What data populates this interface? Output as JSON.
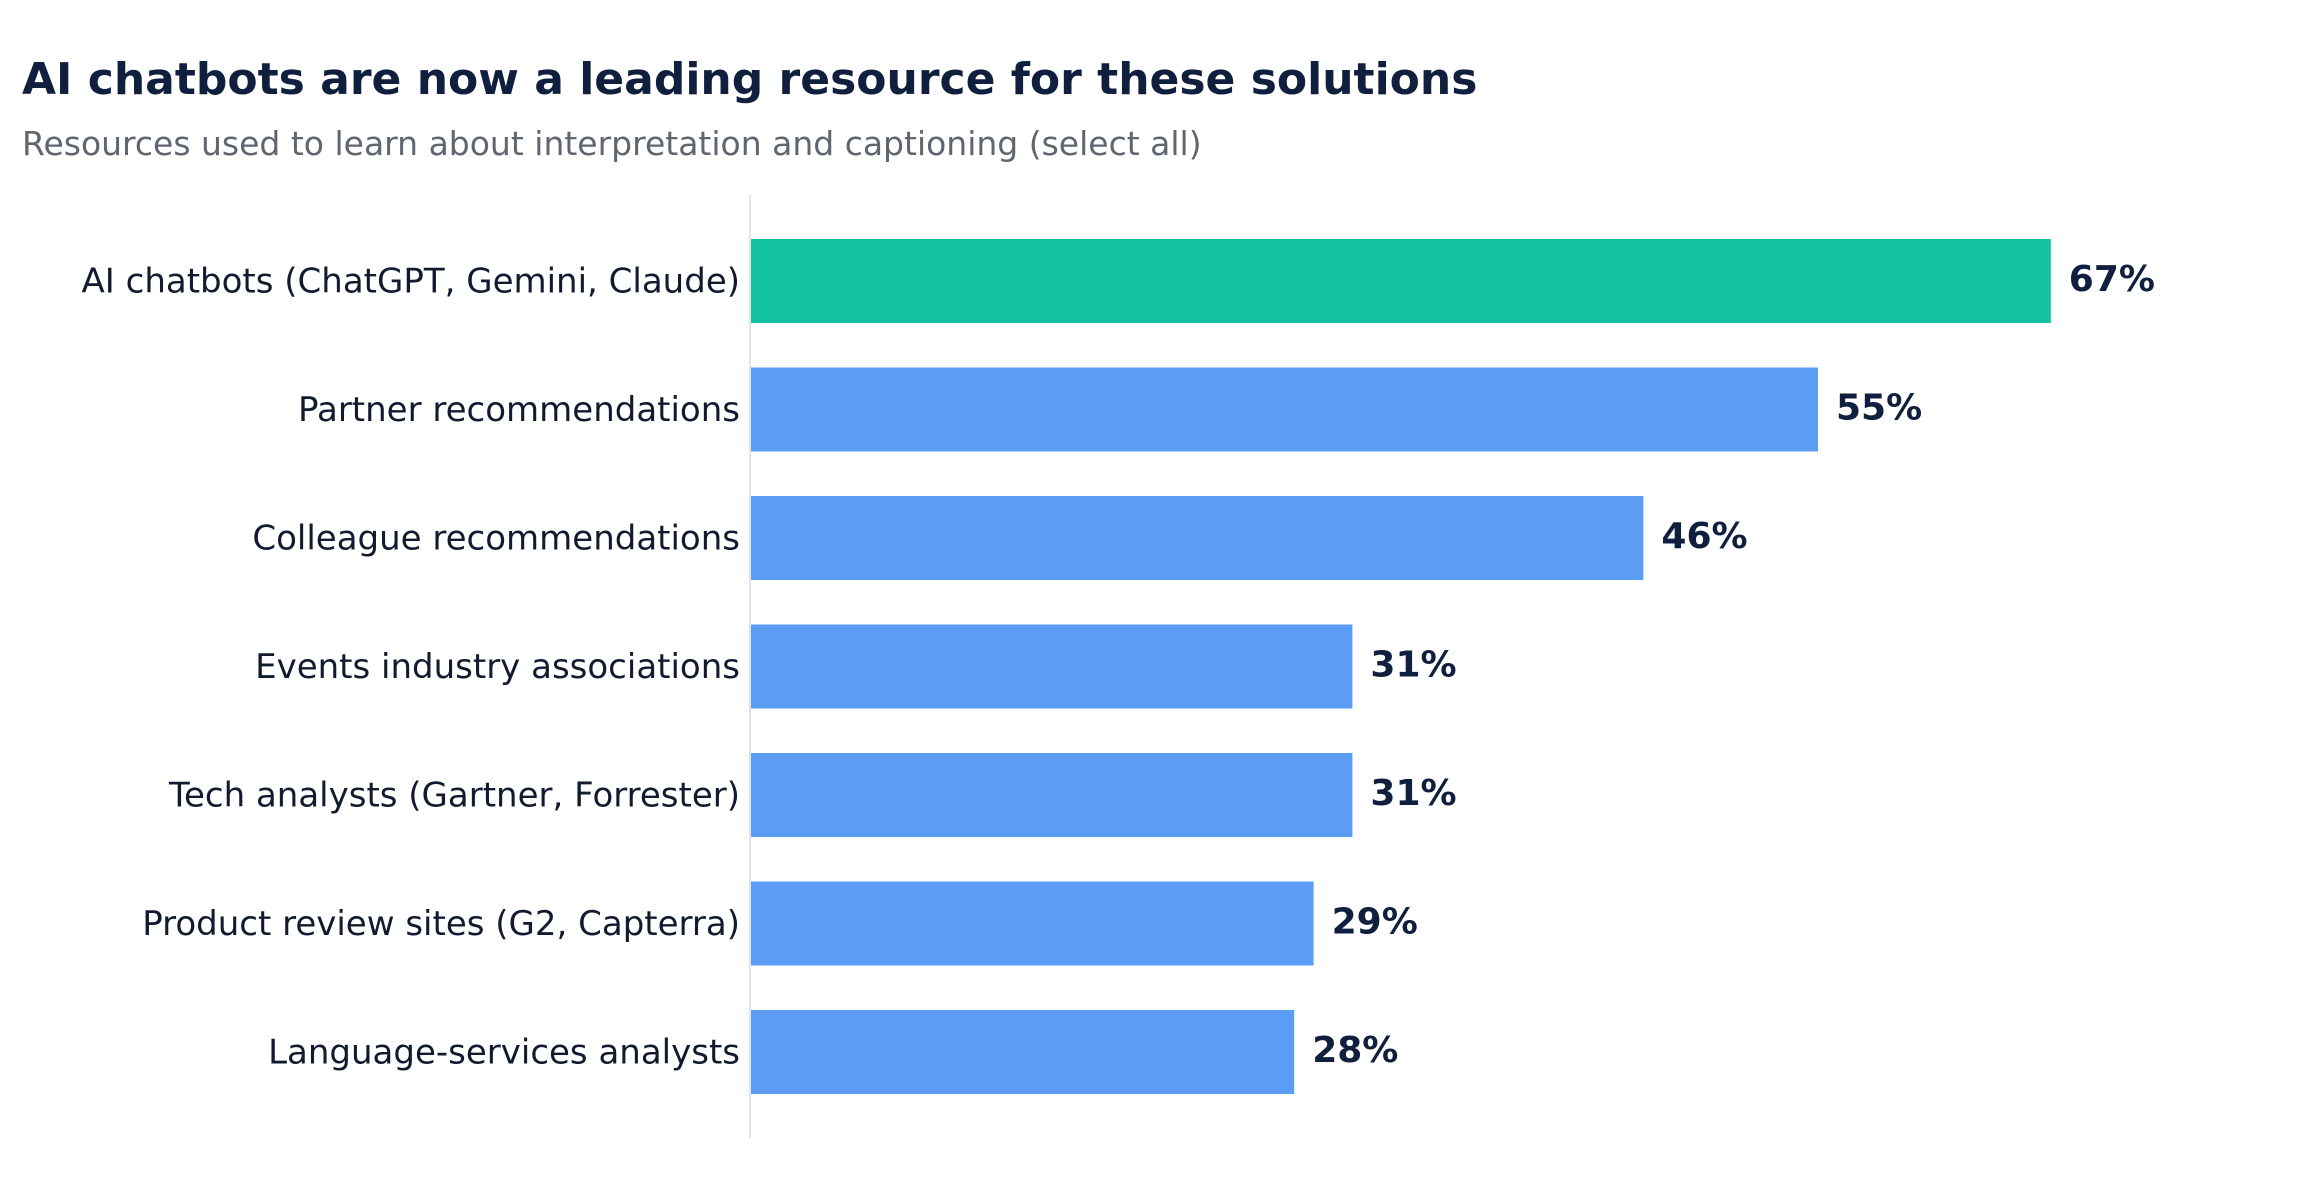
{
  "colors": {
    "title": "#0f1f3d",
    "subtitle": "#5f6670",
    "label": "#111a2e",
    "highlight": "#14c2a3",
    "bar": "#5b9cf5",
    "axis": "#e3e3e3"
  },
  "chart_data": {
    "type": "bar",
    "orientation": "horizontal",
    "title": "AI chatbots are now a leading resource for these solutions",
    "subtitle": "Resources used to learn about interpretation and captioning (select all)",
    "xlabel": "",
    "ylabel": "",
    "unit": "%",
    "xlim": [
      0,
      100
    ],
    "grid": false,
    "highlight_index": 0,
    "categories": [
      "AI chatbots (ChatGPT, Gemini, Claude)",
      "Partner recommendations",
      "Colleague recommendations",
      "Events industry associations",
      "Tech analysts (Gartner, Forrester)",
      "Product review sites (G2, Capterra)",
      "Language-services analysts"
    ],
    "values": [
      67,
      55,
      46,
      31,
      31,
      29,
      28
    ],
    "value_labels": [
      "67%",
      "55%",
      "46%",
      "31%",
      "31%",
      "29%",
      "28%"
    ]
  }
}
